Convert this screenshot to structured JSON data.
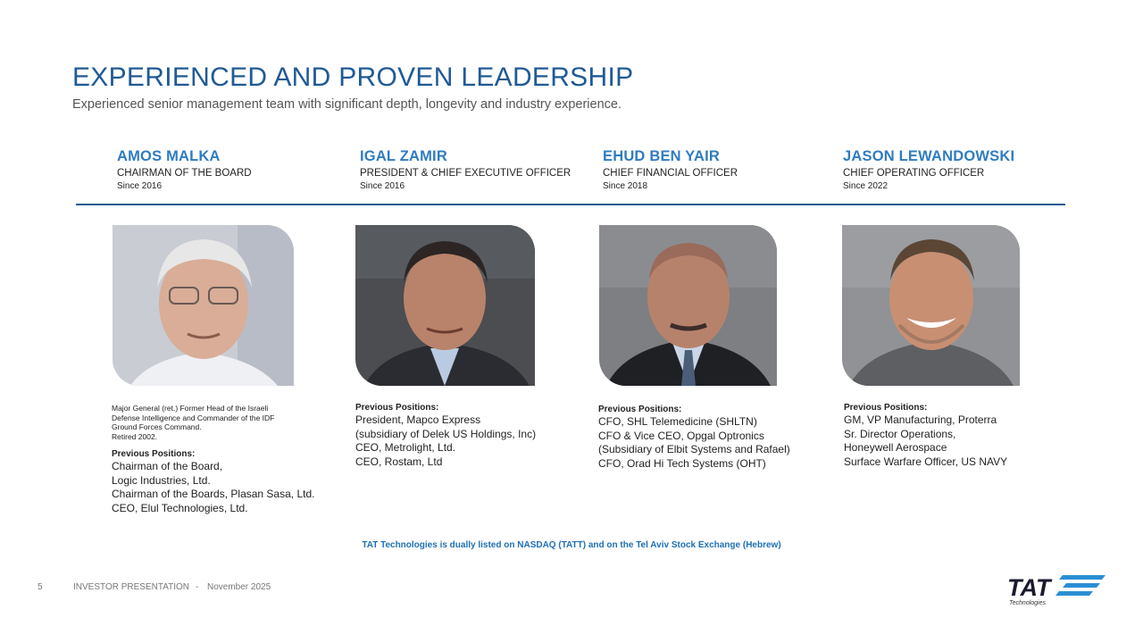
{
  "header": {
    "title": "EXPERIENCED AND PROVEN LEADERSHIP",
    "subtitle": "Experienced senior management team with significant depth, longevity and industry experience."
  },
  "people": [
    {
      "name": "AMOS MALKA",
      "role": "CHAIRMAN OF THE BOARD",
      "since": "Since 2016",
      "bio_note": [
        "Major General (ret.) Former Head of the Israeli",
        "Defense Intelligence and Commander of the IDF",
        "Ground Forces Command.",
        "Retired 2002."
      ],
      "previous_heading": "Previous Positions:",
      "previous": [
        "Chairman of the Board,",
        "Logic Industries, Ltd.",
        "Chairman of the Boards, Plasan Sasa, Ltd.",
        "CEO, Elul Technologies, Ltd."
      ]
    },
    {
      "name": "IGAL ZAMIR",
      "role": "PRESIDENT & CHIEF EXECUTIVE OFFICER",
      "since": "Since 2016",
      "previous_heading": "Previous Positions:",
      "previous": [
        "President, Mapco Express",
        "(subsidiary of Delek US Holdings, Inc)",
        "CEO, Metrolight, Ltd.",
        "CEO, Rostam, Ltd"
      ]
    },
    {
      "name": "EHUD BEN YAIR",
      "role": "CHIEF FINANCIAL OFFICER",
      "since": "Since 2018",
      "previous_heading": "Previous Positions:",
      "previous": [
        "CFO, SHL Telemedicine (SHLTN)",
        "CFO & Vice CEO, Opgal Optronics",
        "(Subsidiary of Elbit Systems and Rafael)",
        "CFO, Orad Hi Tech Systems (OHT)"
      ]
    },
    {
      "name": "JASON LEWANDOWSKI",
      "role": "CHIEF OPERATING OFFICER",
      "since": "Since 2022",
      "previous_heading": "Previous Positions:",
      "previous": [
        "GM, VP Manufacturing, Proterra",
        "Sr. Director Operations,",
        "Honeywell Aerospace",
        "Surface Warfare Officer, US NAVY"
      ]
    }
  ],
  "listing_note": "TAT Technologies is dually listed on NASDAQ (TATT) and on the Tel Aviv Stock Exchange (Hebrew)",
  "footer": {
    "page_number": "5",
    "label": "INVESTOR PRESENTATION",
    "separator": "-",
    "date": "November 2025"
  },
  "logo": {
    "wordmark": "TAT",
    "tagline": "Technologies"
  },
  "colors": {
    "title": "#1f5a96",
    "accent": "#2f7cc1",
    "listing": "#1f6fb5"
  }
}
